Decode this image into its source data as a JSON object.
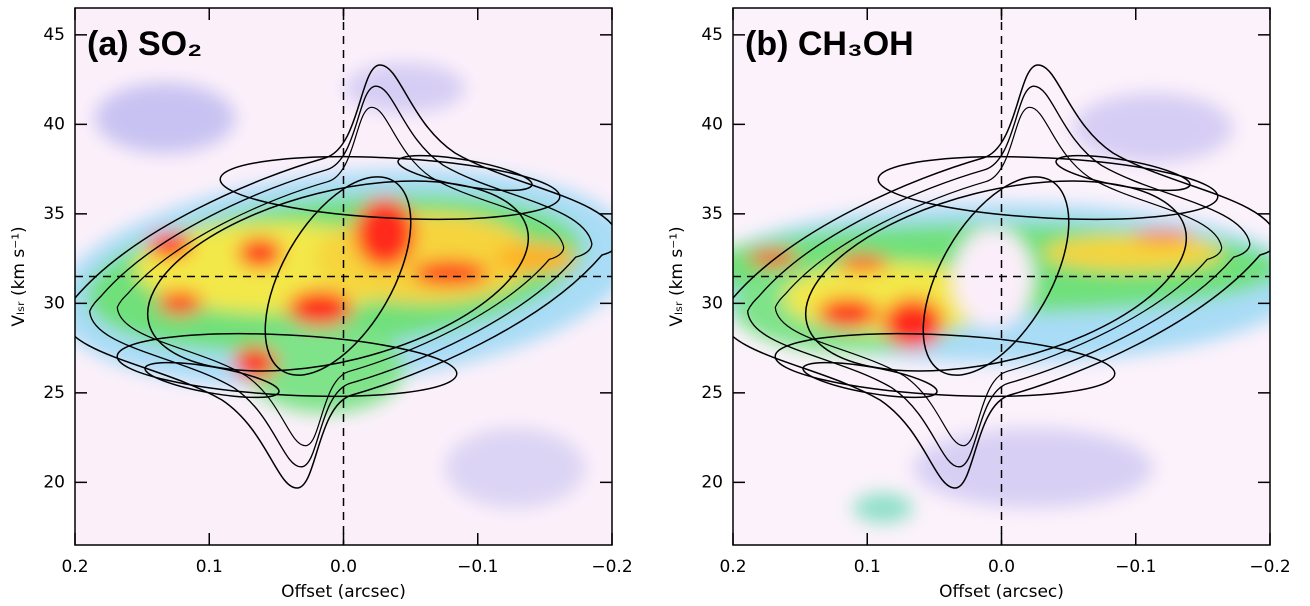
{
  "chart_data": [
    {
      "type": "pv-diagram",
      "title": "(a) SO₂",
      "x_label": "Offset (arcsec)",
      "y_label": "Vₗₛᵣ (km s⁻¹)",
      "xlim": [
        0.2,
        -0.2
      ],
      "ylim": [
        16.5,
        46.5
      ],
      "xticks": [
        0.2,
        0.1,
        {
          "value": 0,
          "label": "0.0"
        },
        {
          "value": -0.1,
          "label": "−0.1"
        },
        {
          "value": -0.2,
          "label": "−0.2"
        }
      ],
      "yticks": [
        20,
        25,
        30,
        35,
        40,
        45
      ],
      "vlines": [
        0
      ],
      "hlines": [
        31.5
      ]
    },
    {
      "type": "pv-diagram",
      "title": "(b) CH₃OH",
      "x_label": "Offset (arcsec)",
      "y_label": "Vₗₛᵣ (km s⁻¹)",
      "xlim": [
        0.2,
        -0.2
      ],
      "ylim": [
        16.5,
        46.5
      ],
      "xticks": [
        0.2,
        0.1,
        {
          "value": 0,
          "label": "0.0"
        },
        {
          "value": -0.1,
          "label": "−0.1"
        },
        {
          "value": -0.2,
          "label": "−0.2"
        }
      ],
      "yticks": [
        20,
        25,
        30,
        35,
        40,
        45
      ],
      "vlines": [
        0
      ],
      "hlines": [
        31.5
      ]
    }
  ]
}
